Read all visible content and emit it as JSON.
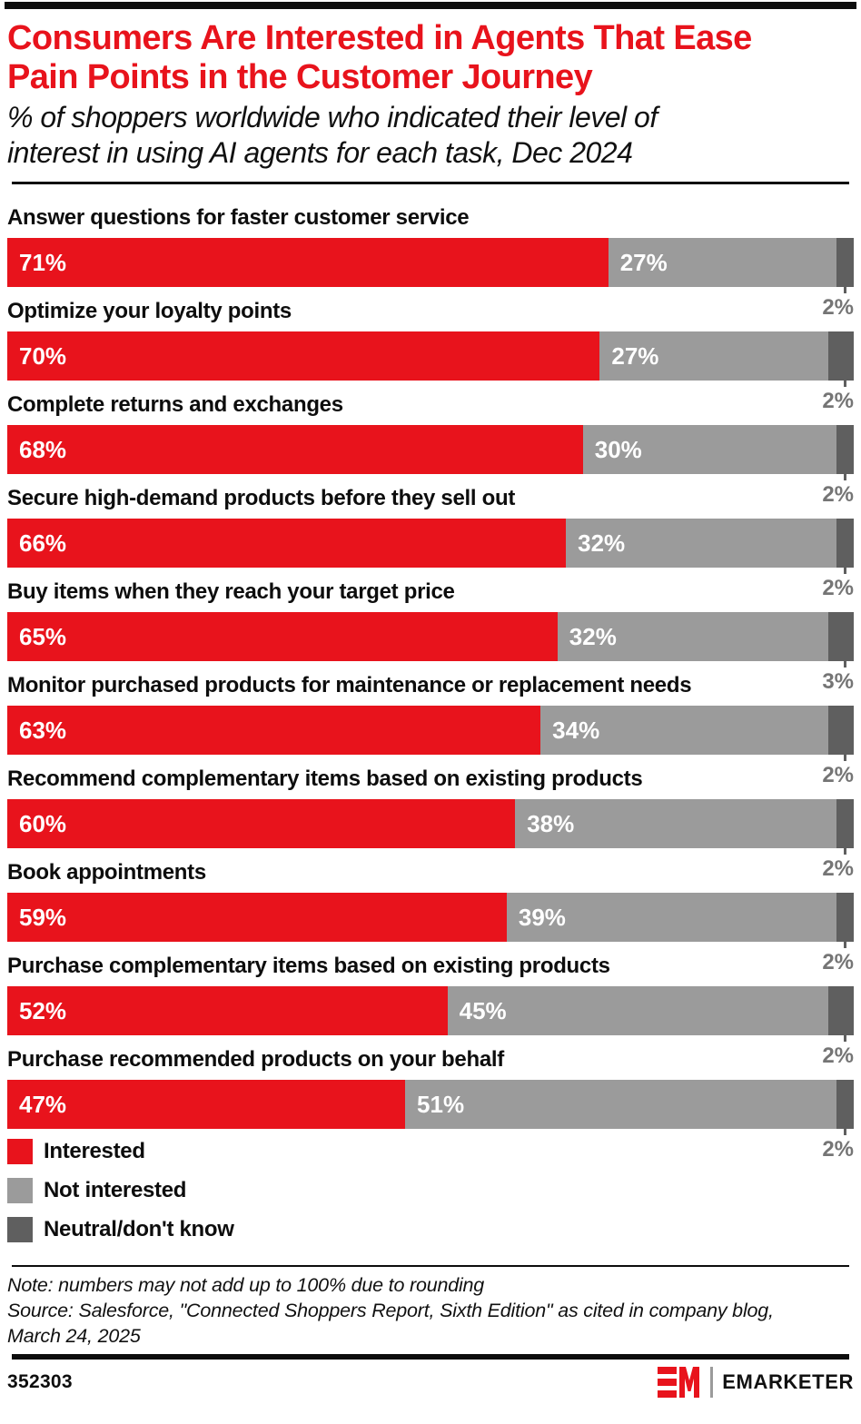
{
  "palette": {
    "interested": "#e8131c",
    "not_interested": "#9b9b9b",
    "neutral": "#5f5f5f",
    "title_red": "#e8131c",
    "neutral_label_gray": "#757575"
  },
  "header": {
    "title_lines": [
      "Consumers Are Interested in Agents That Ease",
      "Pain Points in the Customer Journey"
    ],
    "subtitle_lines": [
      "% of shoppers worldwide who indicated their level of",
      "interest in using AI agents for each task, Dec 2024"
    ]
  },
  "chart_data": {
    "type": "bar",
    "orientation": "horizontal",
    "stacked": true,
    "unit": "%",
    "xlim": [
      0,
      100
    ],
    "title": "Consumers Are Interested in Agents That Ease Pain Points in the Customer Journey",
    "subtitle": "% of shoppers worldwide who indicated their level of interest in using AI agents for each task, Dec 2024",
    "legend_position": "bottom-left",
    "categories": [
      "Answer questions for faster customer service",
      "Optimize your loyalty points",
      "Complete returns and exchanges",
      "Secure high-demand products before they sell out",
      "Buy items when they reach your target price",
      "Monitor purchased products for maintenance or replacement needs",
      "Recommend complementary items based on existing products",
      "Book appointments",
      "Purchase complementary items based on existing products",
      "Purchase recommended products on your behalf"
    ],
    "series": [
      {
        "name": "Interested",
        "color": "#e8131c",
        "values": [
          71,
          70,
          68,
          66,
          65,
          63,
          60,
          59,
          52,
          47
        ]
      },
      {
        "name": "Not interested",
        "color": "#9b9b9b",
        "values": [
          27,
          27,
          30,
          32,
          32,
          34,
          38,
          39,
          45,
          51
        ]
      },
      {
        "name": "Neutral/don't know",
        "color": "#5f5f5f",
        "values": [
          2,
          2,
          2,
          2,
          3,
          2,
          2,
          2,
          2,
          2
        ]
      }
    ],
    "rows": [
      {
        "label": "Answer questions for faster customer service",
        "interested": "71%",
        "not_interested": "27%",
        "neutral": "2%"
      },
      {
        "label": "Optimize your loyalty points",
        "interested": "70%",
        "not_interested": "27%",
        "neutral": "2%"
      },
      {
        "label": "Complete returns and exchanges",
        "interested": "68%",
        "not_interested": "30%",
        "neutral": "2%"
      },
      {
        "label": "Secure high-demand products before they sell out",
        "interested": "66%",
        "not_interested": "32%",
        "neutral": "2%"
      },
      {
        "label": "Buy items when they reach your target price",
        "interested": "65%",
        "not_interested": "32%",
        "neutral": "3%"
      },
      {
        "label": "Monitor purchased products for maintenance or replacement needs",
        "interested": "63%",
        "not_interested": "34%",
        "neutral": "2%"
      },
      {
        "label": "Recommend complementary items based on existing products",
        "interested": "60%",
        "not_interested": "38%",
        "neutral": "2%"
      },
      {
        "label": "Book appointments",
        "interested": "59%",
        "not_interested": "39%",
        "neutral": "2%"
      },
      {
        "label": "Purchase complementary items based on existing products",
        "interested": "52%",
        "not_interested": "45%",
        "neutral": "2%"
      },
      {
        "label": "Purchase recommended products on your behalf",
        "interested": "47%",
        "not_interested": "51%",
        "neutral": "2%"
      }
    ]
  },
  "legend": {
    "items": [
      {
        "label": "Interested",
        "color": "#e8131c"
      },
      {
        "label": "Not interested",
        "color": "#9b9b9b"
      },
      {
        "label": "Neutral/don't know",
        "color": "#5f5f5f"
      }
    ]
  },
  "notes": {
    "note": "Note: numbers may not add up to 100% due to rounding",
    "source_lines": [
      "Source: Salesforce, \"Connected Shoppers Report, Sixth Edition\" as cited in company blog,",
      "March 24, 2025"
    ]
  },
  "footer": {
    "chart_id": "352303",
    "brand": "EMARKETER"
  }
}
